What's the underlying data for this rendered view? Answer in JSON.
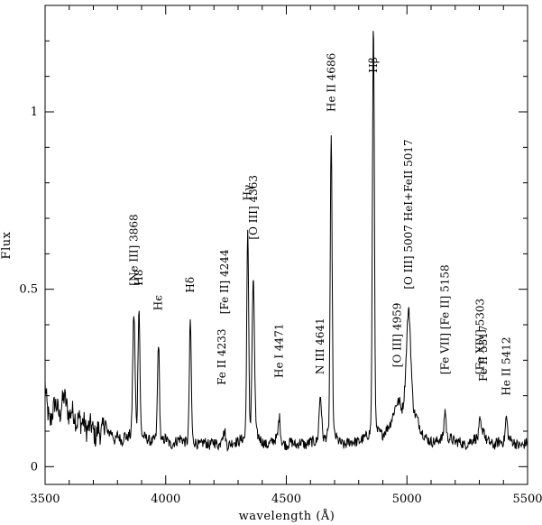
{
  "chart_data": {
    "type": "line",
    "title": "",
    "xlabel": "wavelength (Å)",
    "ylabel": "Flux",
    "xlim": [
      3500,
      5500
    ],
    "ylim": [
      -0.05,
      1.3
    ],
    "grid": false,
    "x_ticks": [
      {
        "value": 3500,
        "label": "3500"
      },
      {
        "value": 4000,
        "label": "4000"
      },
      {
        "value": 4500,
        "label": "4500"
      },
      {
        "value": 5000,
        "label": "5000"
      },
      {
        "value": 5500,
        "label": "5500"
      }
    ],
    "y_ticks": [
      {
        "value": 0,
        "label": "0"
      },
      {
        "value": 0.5,
        "label": "0.5"
      },
      {
        "value": 1,
        "label": "1"
      }
    ],
    "series": [
      {
        "baseline": [
          [
            3500,
            0.23
          ],
          [
            3510,
            0.16
          ],
          [
            3520,
            0.12
          ],
          [
            3530,
            0.15
          ],
          [
            3540,
            0.18
          ],
          [
            3550,
            0.17
          ],
          [
            3560,
            0.14
          ],
          [
            3570,
            0.18
          ],
          [
            3580,
            0.2
          ],
          [
            3590,
            0.17
          ],
          [
            3600,
            0.14
          ],
          [
            3610,
            0.16
          ],
          [
            3620,
            0.15
          ],
          [
            3630,
            0.12
          ],
          [
            3640,
            0.14
          ],
          [
            3650,
            0.12
          ],
          [
            3660,
            0.13
          ],
          [
            3670,
            0.1
          ],
          [
            3680,
            0.11
          ],
          [
            3690,
            0.12
          ],
          [
            3700,
            0.1
          ],
          [
            3710,
            0.08
          ],
          [
            3720,
            0.11
          ],
          [
            3730,
            0.09
          ],
          [
            3740,
            0.11
          ],
          [
            3750,
            0.13
          ],
          [
            3760,
            0.09
          ],
          [
            3770,
            0.1
          ],
          [
            3780,
            0.09
          ],
          [
            3790,
            0.07
          ],
          [
            3800,
            0.09
          ],
          [
            3810,
            0.08
          ],
          [
            3820,
            0.07
          ],
          [
            3830,
            0.09
          ],
          [
            3840,
            0.08
          ],
          [
            3850,
            0.09
          ],
          [
            3860,
            0.07
          ],
          [
            3880,
            0.08
          ],
          [
            3900,
            0.09
          ],
          [
            3920,
            0.08
          ],
          [
            3940,
            0.07
          ],
          [
            3960,
            0.08
          ],
          [
            3980,
            0.07
          ],
          [
            4000,
            0.08
          ],
          [
            4020,
            0.06
          ],
          [
            4040,
            0.07
          ],
          [
            4060,
            0.08
          ],
          [
            4080,
            0.07
          ],
          [
            4120,
            0.07
          ],
          [
            4140,
            0.06
          ],
          [
            4160,
            0.07
          ],
          [
            4180,
            0.06
          ],
          [
            4200,
            0.07
          ],
          [
            4220,
            0.06
          ],
          [
            4260,
            0.06
          ],
          [
            4280,
            0.07
          ],
          [
            4300,
            0.07
          ],
          [
            4320,
            0.08
          ],
          [
            4380,
            0.09
          ],
          [
            4400,
            0.07
          ],
          [
            4420,
            0.06
          ],
          [
            4440,
            0.07
          ],
          [
            4460,
            0.08
          ],
          [
            4480,
            0.07
          ],
          [
            4500,
            0.06
          ],
          [
            4520,
            0.07
          ],
          [
            4540,
            0.06
          ],
          [
            4560,
            0.07
          ],
          [
            4580,
            0.06
          ],
          [
            4600,
            0.07
          ],
          [
            4620,
            0.07
          ],
          [
            4660,
            0.08
          ],
          [
            4670,
            0.09
          ],
          [
            4700,
            0.09
          ],
          [
            4720,
            0.07
          ],
          [
            4740,
            0.06
          ],
          [
            4760,
            0.07
          ],
          [
            4780,
            0.07
          ],
          [
            4800,
            0.07
          ],
          [
            4820,
            0.08
          ],
          [
            4840,
            0.09
          ],
          [
            4850,
            0.1
          ],
          [
            4880,
            0.1
          ],
          [
            4900,
            0.09
          ],
          [
            4920,
            0.11
          ],
          [
            4930,
            0.12
          ],
          [
            4940,
            0.14
          ],
          [
            4950,
            0.16
          ],
          [
            4960,
            0.17
          ],
          [
            4970,
            0.18
          ],
          [
            4980,
            0.16
          ],
          [
            4990,
            0.17
          ],
          [
            5040,
            0.14
          ],
          [
            5060,
            0.1
          ],
          [
            5080,
            0.08
          ],
          [
            5100,
            0.07
          ],
          [
            5120,
            0.07
          ],
          [
            5140,
            0.08
          ],
          [
            5180,
            0.08
          ],
          [
            5200,
            0.07
          ],
          [
            5220,
            0.07
          ],
          [
            5240,
            0.06
          ],
          [
            5260,
            0.07
          ],
          [
            5280,
            0.08
          ],
          [
            5300,
            0.08
          ],
          [
            5320,
            0.08
          ],
          [
            5340,
            0.07
          ],
          [
            5360,
            0.06
          ],
          [
            5380,
            0.07
          ],
          [
            5400,
            0.07
          ],
          [
            5420,
            0.08
          ],
          [
            5440,
            0.07
          ],
          [
            5460,
            0.06
          ],
          [
            5480,
            0.06
          ],
          [
            5500,
            0.07
          ]
        ],
        "peaks": [
          {
            "x": 3868,
            "y": 0.43,
            "w": 5
          },
          {
            "x": 3889,
            "y": 0.45,
            "w": 4
          },
          {
            "x": 3970,
            "y": 0.35,
            "w": 4
          },
          {
            "x": 4102,
            "y": 0.41,
            "w": 4
          },
          {
            "x": 4233,
            "y": 0.09,
            "w": 4
          },
          {
            "x": 4244,
            "y": 0.1,
            "w": 4
          },
          {
            "x": 4340,
            "y": 0.66,
            "w": 4
          },
          {
            "x": 4363,
            "y": 0.52,
            "w": 5
          },
          {
            "x": 4471,
            "y": 0.14,
            "w": 4
          },
          {
            "x": 4641,
            "y": 0.2,
            "w": 5
          },
          {
            "x": 4686,
            "y": 0.92,
            "w": 4
          },
          {
            "x": 4861,
            "y": 1.25,
            "w": 4
          },
          {
            "x": 4959,
            "y": 0.18,
            "w": 7
          },
          {
            "x": 5007,
            "y": 0.44,
            "w": 9
          },
          {
            "x": 5158,
            "y": 0.16,
            "w": 4
          },
          {
            "x": 5303,
            "y": 0.13,
            "w": 4
          },
          {
            "x": 5317,
            "y": 0.11,
            "w": 4
          },
          {
            "x": 5412,
            "y": 0.14,
            "w": 4
          }
        ],
        "noise_amplitude": 0.015
      }
    ],
    "line_labels": [
      {
        "text": "[Ne III]  3868",
        "x": 3868,
        "y": 0.51
      },
      {
        "text": "H8",
        "x": 3889,
        "y": 0.51
      },
      {
        "text": "Hϵ",
        "x": 3970,
        "y": 0.44
      },
      {
        "text": "Hδ",
        "x": 4102,
        "y": 0.49
      },
      {
        "text": "Fe II  4233",
        "x": 4233,
        "y": 0.23
      },
      {
        "text": "[Fe II]  4244",
        "x": 4244,
        "y": 0.43
      },
      {
        "text": "Hγ",
        "x": 4340,
        "y": 0.75
      },
      {
        "text": "[O III]  4363",
        "x": 4363,
        "y": 0.64
      },
      {
        "text": "He I  4471",
        "x": 4471,
        "y": 0.25
      },
      {
        "text": "N III  4641",
        "x": 4641,
        "y": 0.26
      },
      {
        "text": "He II  4686",
        "x": 4686,
        "y": 1.0
      },
      {
        "text": "Hβ",
        "x": 4861,
        "y": 1.11
      },
      {
        "text": "[O III]  4959",
        "x": 4959,
        "y": 0.28
      },
      {
        "text": "[O III]  5007  HeI+FeII  5017",
        "x": 5007,
        "y": 0.5
      },
      {
        "text": "[Fe VII]  [Fe II]  5158",
        "x": 5158,
        "y": 0.26
      },
      {
        "text": "[Fe XIV]  5303",
        "x": 5303,
        "y": 0.26
      },
      {
        "text": "Fe II  5317",
        "x": 5317,
        "y": 0.24
      },
      {
        "text": "He II  5412",
        "x": 5412,
        "y": 0.2
      }
    ]
  }
}
